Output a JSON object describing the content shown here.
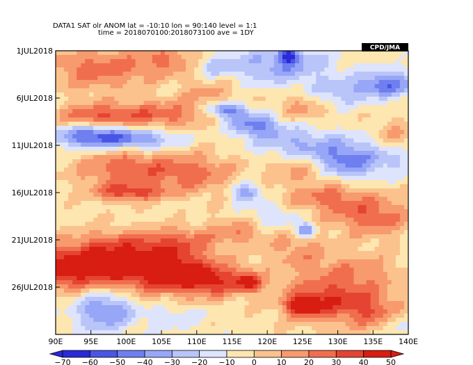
{
  "header": {
    "line1": "DATA1   SAT   olr   ANOM   lat = -10:10   lon = 90:140   level = 1:1",
    "line2": "time = 2018070100:2018073100   ave = 1DY"
  },
  "badge": "CPD/JMA",
  "colors": {
    "neg": [
      "#2a2ad8",
      "#4a55e6",
      "#6f7ff0",
      "#97a6f6",
      "#b9c5f9",
      "#dde4fc"
    ],
    "pos": [
      "#fde6b0",
      "#fbc28e",
      "#f79a6e",
      "#f06e4e",
      "#e54432",
      "#d81d12"
    ]
  },
  "chart_data": {
    "type": "heatmap",
    "title": "DATA1 SAT olr ANOM lat = -10:10 lon = 90:140 level = 1:1 time = 2018070100:2018073100 ave = 1DY",
    "x_ticks": [
      "90E",
      "95E",
      "100E",
      "105E",
      "110E",
      "115E",
      "120E",
      "125E",
      "130E",
      "135E",
      "140E"
    ],
    "y_ticks": [
      "1JUL2018",
      "6JUL2018",
      "11JUL2018",
      "16JUL2018",
      "21JUL2018",
      "26JUL2018"
    ],
    "colorbar_labels": [
      "-70",
      "-60",
      "-50",
      "-40",
      "-30",
      "-20",
      "-10",
      "0",
      "10",
      "20",
      "30",
      "40",
      "50"
    ],
    "contour_levels": [
      -70,
      -60,
      -50,
      -40,
      -30,
      -20,
      -10,
      0,
      10,
      20,
      30,
      40,
      50
    ],
    "xlim": [
      90,
      140
    ],
    "ylim_days": [
      1,
      31
    ],
    "features": [
      {
        "lon": 92.0,
        "day": 24.0,
        "value": 55,
        "sx": 6,
        "sy": 1.5
      },
      {
        "lon": 105.0,
        "day": 24.0,
        "value": 50,
        "sx": 5,
        "sy": 1.8
      },
      {
        "lon": 112.0,
        "day": 25.3,
        "value": 38,
        "sx": 4,
        "sy": 1.2
      },
      {
        "lon": 117.5,
        "day": 25.5,
        "value": 42,
        "sx": 1.2,
        "sy": 0.7
      },
      {
        "lon": 98.0,
        "day": 21.5,
        "value": 22,
        "sx": 5,
        "sy": 1.2
      },
      {
        "lon": 108.0,
        "day": 21.0,
        "value": 20,
        "sx": 4,
        "sy": 1.0
      },
      {
        "lon": 116.0,
        "day": 20.0,
        "value": 22,
        "sx": 2.5,
        "sy": 1.0
      },
      {
        "lon": 100.0,
        "day": 13.5,
        "value": 32,
        "sx": 5,
        "sy": 1.5
      },
      {
        "lon": 100.5,
        "day": 16.0,
        "value": 35,
        "sx": 3.5,
        "sy": 0.6
      },
      {
        "lon": 110.0,
        "day": 14.0,
        "value": 25,
        "sx": 4,
        "sy": 1.5
      },
      {
        "lon": 96.0,
        "day": 8.0,
        "value": 36,
        "sx": 4,
        "sy": 1.0
      },
      {
        "lon": 105.0,
        "day": 7.8,
        "value": 28,
        "sx": 4,
        "sy": 1.0
      },
      {
        "lon": 96.0,
        "day": 3.0,
        "value": 30,
        "sx": 5,
        "sy": 1.5
      },
      {
        "lon": 107.0,
        "day": 2.0,
        "value": 25,
        "sx": 4,
        "sy": 1.2
      },
      {
        "lon": 112.0,
        "day": 6.0,
        "value": 18,
        "sx": 3,
        "sy": 1.5
      },
      {
        "lon": 125.0,
        "day": 7.0,
        "value": 18,
        "sx": 2.5,
        "sy": 1.2
      },
      {
        "lon": 138.0,
        "day": 11.0,
        "value": 28,
        "sx": 2,
        "sy": 1.5
      },
      {
        "lon": 125.0,
        "day": 13.5,
        "value": 22,
        "sx": 3,
        "sy": 1.0
      },
      {
        "lon": 128.0,
        "day": 16.5,
        "value": 26,
        "sx": 4,
        "sy": 1.2
      },
      {
        "lon": 135.0,
        "day": 18.5,
        "value": 30,
        "sx": 4,
        "sy": 1.5
      },
      {
        "lon": 124.0,
        "day": 22.0,
        "value": 18,
        "sx": 3,
        "sy": 1.5
      },
      {
        "lon": 132.0,
        "day": 24.5,
        "value": 22,
        "sx": 5,
        "sy": 1.5
      },
      {
        "lon": 128.0,
        "day": 27.5,
        "value": 38,
        "sx": 4,
        "sy": 1.5
      },
      {
        "lon": 125.0,
        "day": 28.0,
        "value": 45,
        "sx": 1.5,
        "sy": 0.7
      },
      {
        "lon": 135.0,
        "day": 28.5,
        "value": 28,
        "sx": 3,
        "sy": 1.5
      },
      {
        "lon": 95.5,
        "day": 10.0,
        "value": -55,
        "sx": 4,
        "sy": 0.9
      },
      {
        "lon": 103.0,
        "day": 10.5,
        "value": -28,
        "sx": 3.5,
        "sy": 0.8
      },
      {
        "lon": 114.0,
        "day": 7.2,
        "value": -52,
        "sx": 2,
        "sy": 0.6
      },
      {
        "lon": 118.0,
        "day": 8.8,
        "value": -40,
        "sx": 2.5,
        "sy": 0.8
      },
      {
        "lon": 123.0,
        "day": 10.5,
        "value": -24,
        "sx": 4,
        "sy": 1.2
      },
      {
        "lon": 131.0,
        "day": 12.5,
        "value": -42,
        "sx": 4,
        "sy": 1.5
      },
      {
        "lon": 138.0,
        "day": 12.0,
        "value": -30,
        "sx": 2,
        "sy": 1.2
      },
      {
        "lon": 122.0,
        "day": 2.5,
        "value": -32,
        "sx": 5,
        "sy": 1.5
      },
      {
        "lon": 123.0,
        "day": 1.6,
        "value": -50,
        "sx": 0.9,
        "sy": 0.5
      },
      {
        "lon": 112.0,
        "day": 2.5,
        "value": -25,
        "sx": 2.5,
        "sy": 1.0
      },
      {
        "lon": 137.0,
        "day": 4.5,
        "value": -42,
        "sx": 3,
        "sy": 1.0
      },
      {
        "lon": 130.0,
        "day": 5.5,
        "value": -22,
        "sx": 3,
        "sy": 1.0
      },
      {
        "lon": 117.0,
        "day": 16.0,
        "value": -35,
        "sx": 1.5,
        "sy": 0.7
      },
      {
        "lon": 121.0,
        "day": 18.5,
        "value": -18,
        "sx": 3,
        "sy": 1.0
      },
      {
        "lon": 125.5,
        "day": 20.0,
        "value": -45,
        "sx": 1.0,
        "sy": 0.5
      },
      {
        "lon": 97.0,
        "day": 28.5,
        "value": -38,
        "sx": 3,
        "sy": 1.5
      },
      {
        "lon": 107.0,
        "day": 29.0,
        "value": -12,
        "sx": 3,
        "sy": 1.2
      },
      {
        "lon": 138.5,
        "day": 30.0,
        "value": -15,
        "sx": 1.5,
        "sy": 1.0
      }
    ]
  }
}
